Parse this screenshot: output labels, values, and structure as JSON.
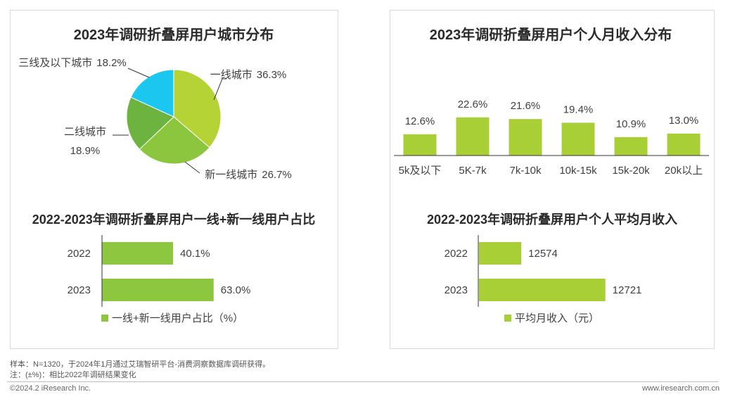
{
  "colors": {
    "tier1": "#b5d334",
    "new_tier1": "#8cc63f",
    "tier2": "#6db33f",
    "tier3": "#1cc7ef",
    "bar": "#a8cf35",
    "bar_green": "#8dc63f",
    "axis": "#333333"
  },
  "chart_data": [
    {
      "type": "pie",
      "title": "2023年调研折叠屏用户城市分布",
      "slices": [
        {
          "name": "一线城市",
          "value": 36.3,
          "label": "36.3%"
        },
        {
          "name": "新一线城市",
          "value": 26.7,
          "label": "26.7%"
        },
        {
          "name": "二线城市",
          "value": 18.9,
          "label": "18.9%"
        },
        {
          "name": "三线及以下城市",
          "value": 18.2,
          "label": "18.2%"
        }
      ]
    },
    {
      "type": "bar",
      "title": "2023年调研折叠屏用户个人月收入分布",
      "categories": [
        "5k及以下",
        "5K-7k",
        "7k-10k",
        "10k-15k",
        "15k-20k",
        "20k以上"
      ],
      "values": [
        12.6,
        22.6,
        21.6,
        19.4,
        10.9,
        13.0
      ],
      "value_labels": [
        "12.6%",
        "22.6%",
        "21.6%",
        "19.4%",
        "10.9%",
        "13.0%"
      ],
      "ylim": [
        0,
        25
      ]
    },
    {
      "type": "bar",
      "orientation": "horizontal",
      "title": "2022-2023年调研折叠屏用户一线+新一线用户占比",
      "categories": [
        "2022",
        "2023"
      ],
      "values": [
        40.1,
        63.0
      ],
      "value_labels": [
        "40.1%",
        "63.0%"
      ],
      "legend": "一线+新一线用户占比（%）",
      "xlim": [
        0,
        100
      ]
    },
    {
      "type": "bar",
      "orientation": "horizontal",
      "title": "2022-2023年调研折叠屏用户个人平均月收入",
      "categories": [
        "2022",
        "2023"
      ],
      "values": [
        12574,
        12721
      ],
      "value_labels": [
        "12574",
        "12721"
      ],
      "legend": "平均月收入（元）",
      "xlim": [
        12500,
        12730
      ]
    }
  ],
  "footnotes": {
    "sample": "样本：N=1320，于2024年1月通过艾瑞智研平台-消费洞察数据库调研获得。",
    "note": "注：(±%)：相比2022年调研结果变化"
  },
  "footer": {
    "copyright": "©2024.2 iResearch Inc.",
    "website": "www.iresearch.com.cn"
  }
}
